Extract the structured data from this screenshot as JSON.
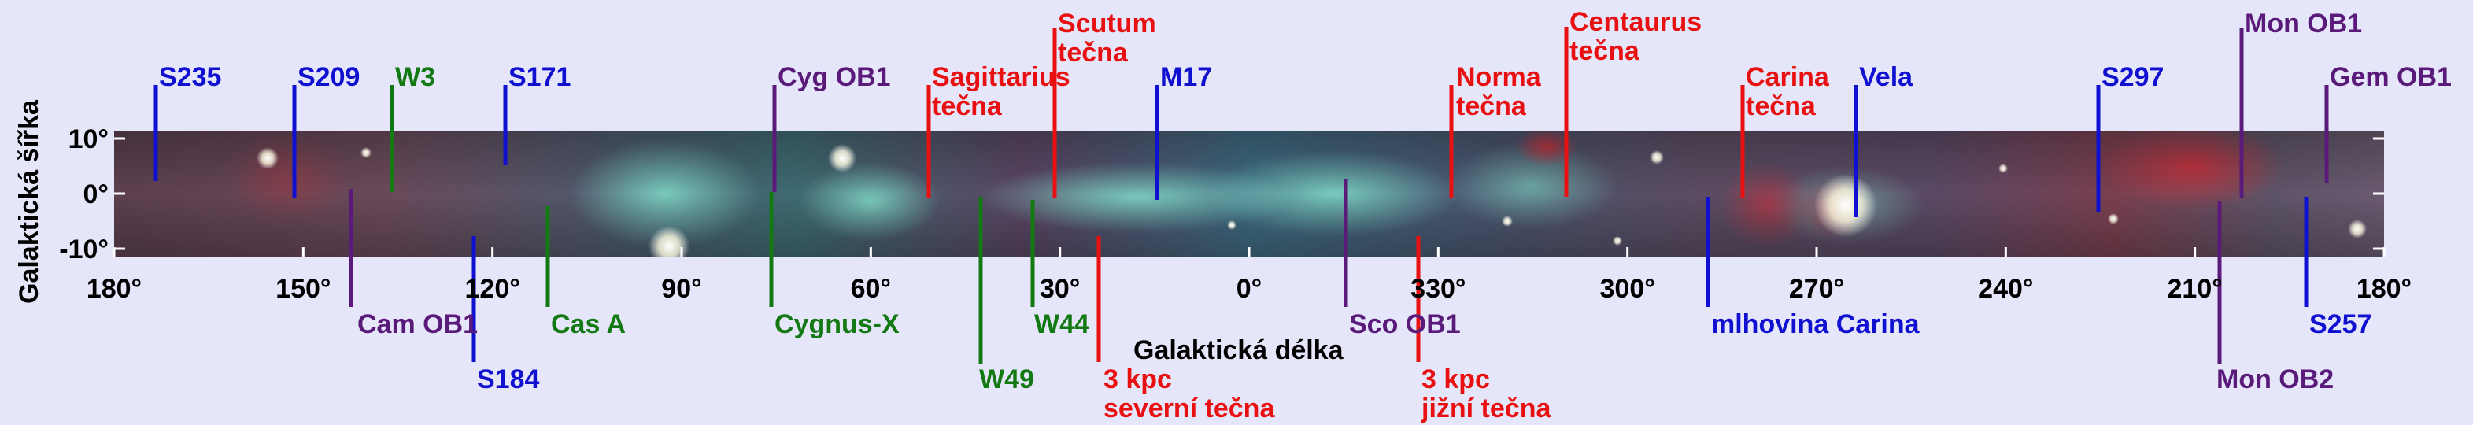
{
  "axes": {
    "y_label": "Galaktická šířka",
    "x_label": "Galaktická délka",
    "y_ticks": [
      "10°",
      "0°",
      "-10°"
    ],
    "x_ticks": [
      "180°",
      "150°",
      "120°",
      "90°",
      "60°",
      "30°",
      "0°",
      "330°",
      "300°",
      "270°",
      "240°",
      "210°",
      "180°"
    ]
  },
  "colors": {
    "blue": "#1010d0",
    "green": "#137a13",
    "purple": "#5a1a7a",
    "red": "#e81010"
  },
  "labels": [
    {
      "id": "s235",
      "text": "S235",
      "color": "blue"
    },
    {
      "id": "s209",
      "text": "S209",
      "color": "blue"
    },
    {
      "id": "w3",
      "text": "W3",
      "color": "green"
    },
    {
      "id": "s171",
      "text": "S171",
      "color": "blue"
    },
    {
      "id": "cyg-ob1",
      "text": "Cyg OB1",
      "color": "purple"
    },
    {
      "id": "sagittarius",
      "text": "Sagittarius",
      "text2": "tečna",
      "color": "red"
    },
    {
      "id": "scutum",
      "text": "Scutum",
      "text2": "tečna",
      "color": "red"
    },
    {
      "id": "m17",
      "text": "M17",
      "color": "blue"
    },
    {
      "id": "norma",
      "text": "Norma",
      "text2": "tečna",
      "color": "red"
    },
    {
      "id": "centaurus",
      "text": "Centaurus",
      "text2": "tečna",
      "color": "red"
    },
    {
      "id": "carina",
      "text": "Carina",
      "text2": "tečna",
      "color": "red"
    },
    {
      "id": "vela",
      "text": "Vela",
      "color": "blue"
    },
    {
      "id": "s297",
      "text": "S297",
      "color": "blue"
    },
    {
      "id": "mon-ob1",
      "text": "Mon OB1",
      "color": "purple"
    },
    {
      "id": "gem-ob1",
      "text": "Gem OB1",
      "color": "purple"
    },
    {
      "id": "cam-ob1",
      "text": "Cam OB1",
      "color": "purple"
    },
    {
      "id": "s184",
      "text": "S184",
      "color": "blue"
    },
    {
      "id": "cas-a",
      "text": "Cas A",
      "color": "green"
    },
    {
      "id": "cygnus-x",
      "text": "Cygnus-X",
      "color": "green"
    },
    {
      "id": "w49",
      "text": "W49",
      "color": "green"
    },
    {
      "id": "w44",
      "text": "W44",
      "color": "green"
    },
    {
      "id": "kpc-north",
      "text": "3 kpc",
      "text2": "severní tečna",
      "color": "red"
    },
    {
      "id": "sco-ob1",
      "text": "Sco OB1",
      "color": "purple"
    },
    {
      "id": "kpc-south",
      "text": "3 kpc",
      "text2": "jižní tečna",
      "color": "red"
    },
    {
      "id": "carina-nebula",
      "text": "mlhovina Carina",
      "color": "blue"
    },
    {
      "id": "s257",
      "text": "S257",
      "color": "blue"
    },
    {
      "id": "mon-ob2",
      "text": "Mon OB2",
      "color": "purple"
    }
  ]
}
